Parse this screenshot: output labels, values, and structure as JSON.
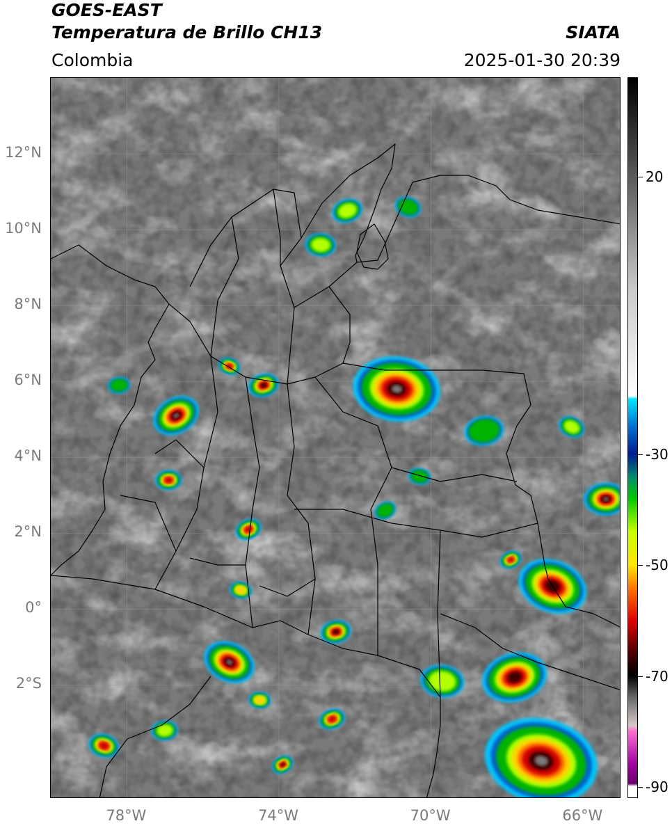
{
  "header": {
    "title_line1": "GOES-EAST",
    "title_line2": "Temperatura de Brillo CH13",
    "organization": "SIATA",
    "region": "Colombia",
    "datetime": "2025-01-30 20:39"
  },
  "map": {
    "lon_range": [
      -80,
      -65
    ],
    "lat_range": [
      -5,
      14
    ],
    "lat_labels": [
      {
        "value": 12,
        "text": "12°N"
      },
      {
        "value": 10,
        "text": "10°N"
      },
      {
        "value": 8,
        "text": "8°N"
      },
      {
        "value": 6,
        "text": "6°N"
      },
      {
        "value": 4,
        "text": "4°N"
      },
      {
        "value": 2,
        "text": "2°N"
      },
      {
        "value": 0,
        "text": "0°"
      },
      {
        "value": -2,
        "text": "2°S"
      }
    ],
    "lon_labels": [
      {
        "value": -78,
        "text": "78°W"
      },
      {
        "value": -74,
        "text": "74°W"
      },
      {
        "value": -70,
        "text": "70°W"
      },
      {
        "value": -66,
        "text": "66°W"
      }
    ],
    "storm_cells": [
      {
        "lon": -76.7,
        "lat": 5.1,
        "r": 0.55,
        "intensity": 1.0
      },
      {
        "lon": -70.9,
        "lat": 5.8,
        "r": 1.0,
        "intensity": 1.0
      },
      {
        "lon": -74.4,
        "lat": 5.9,
        "r": 0.35,
        "intensity": 0.8
      },
      {
        "lon": -75.3,
        "lat": 6.4,
        "r": 0.25,
        "intensity": 0.6
      },
      {
        "lon": -76.9,
        "lat": 3.4,
        "r": 0.3,
        "intensity": 0.6
      },
      {
        "lon": -74.8,
        "lat": 2.1,
        "r": 0.3,
        "intensity": 0.6
      },
      {
        "lon": -75.0,
        "lat": 0.5,
        "r": 0.25,
        "intensity": 0.5
      },
      {
        "lon": -72.5,
        "lat": -0.6,
        "r": 0.35,
        "intensity": 0.8
      },
      {
        "lon": -75.3,
        "lat": -1.4,
        "r": 0.6,
        "intensity": 1.0
      },
      {
        "lon": -74.5,
        "lat": -2.4,
        "r": 0.25,
        "intensity": 0.5
      },
      {
        "lon": -72.6,
        "lat": -2.9,
        "r": 0.3,
        "intensity": 0.6
      },
      {
        "lon": -78.6,
        "lat": -3.6,
        "r": 0.35,
        "intensity": 0.6
      },
      {
        "lon": -77.0,
        "lat": -3.2,
        "r": 0.3,
        "intensity": 0.4
      },
      {
        "lon": -73.9,
        "lat": -4.1,
        "r": 0.25,
        "intensity": 0.9
      },
      {
        "lon": -69.7,
        "lat": -1.9,
        "r": 0.5,
        "intensity": 0.4
      },
      {
        "lon": -67.8,
        "lat": -1.8,
        "r": 0.75,
        "intensity": 0.9
      },
      {
        "lon": -66.8,
        "lat": 0.6,
        "r": 0.8,
        "intensity": 0.9
      },
      {
        "lon": -65.4,
        "lat": 2.9,
        "r": 0.5,
        "intensity": 1.0
      },
      {
        "lon": -67.9,
        "lat": 1.3,
        "r": 0.25,
        "intensity": 0.6
      },
      {
        "lon": -67.1,
        "lat": -4.0,
        "r": 1.3,
        "intensity": 1.0
      },
      {
        "lon": -68.6,
        "lat": 4.7,
        "r": 0.45,
        "intensity": 0.3
      },
      {
        "lon": -66.3,
        "lat": 4.8,
        "r": 0.3,
        "intensity": 0.4
      },
      {
        "lon": -72.9,
        "lat": 9.6,
        "r": 0.35,
        "intensity": 0.4
      },
      {
        "lon": -72.2,
        "lat": 10.5,
        "r": 0.35,
        "intensity": 0.4
      },
      {
        "lon": -70.6,
        "lat": 10.6,
        "r": 0.3,
        "intensity": 0.3
      },
      {
        "lon": -78.2,
        "lat": 5.9,
        "r": 0.25,
        "intensity": 0.3
      },
      {
        "lon": -71.2,
        "lat": 2.6,
        "r": 0.25,
        "intensity": 0.3
      },
      {
        "lon": -70.3,
        "lat": 3.5,
        "r": 0.25,
        "intensity": 0.3
      }
    ]
  },
  "colorbar": {
    "range": [
      -92,
      38
    ],
    "ticks": [
      {
        "value": 20,
        "text": "20"
      },
      {
        "value": -30,
        "text": "-30"
      },
      {
        "value": -50,
        "text": "-50"
      },
      {
        "value": -70,
        "text": "-70"
      },
      {
        "value": -90,
        "text": "-90"
      }
    ],
    "stops": [
      {
        "value": 38,
        "color": "#000000"
      },
      {
        "value": 20,
        "color": "#5a5a5a"
      },
      {
        "value": 0,
        "color": "#c9c9c9"
      },
      {
        "value": -19.5,
        "color": "#ffffff"
      },
      {
        "value": -20,
        "color": "#00e5ff"
      },
      {
        "value": -25,
        "color": "#0070d0"
      },
      {
        "value": -30,
        "color": "#001a90"
      },
      {
        "value": -34,
        "color": "#008a70"
      },
      {
        "value": -38,
        "color": "#00c800"
      },
      {
        "value": -44,
        "color": "#c8ff00"
      },
      {
        "value": -50,
        "color": "#ffe600"
      },
      {
        "value": -54,
        "color": "#ff7a00"
      },
      {
        "value": -60,
        "color": "#e00000"
      },
      {
        "value": -66,
        "color": "#4a0000"
      },
      {
        "value": -70,
        "color": "#000000"
      },
      {
        "value": -74,
        "color": "#6a6a6a"
      },
      {
        "value": -79,
        "color": "#d8c8c8"
      },
      {
        "value": -80,
        "color": "#ff70d0"
      },
      {
        "value": -86,
        "color": "#a000a0"
      },
      {
        "value": -89.5,
        "color": "#6a006a"
      },
      {
        "value": -90,
        "color": "#ffffff"
      },
      {
        "value": -92,
        "color": "#ffffff"
      }
    ]
  }
}
